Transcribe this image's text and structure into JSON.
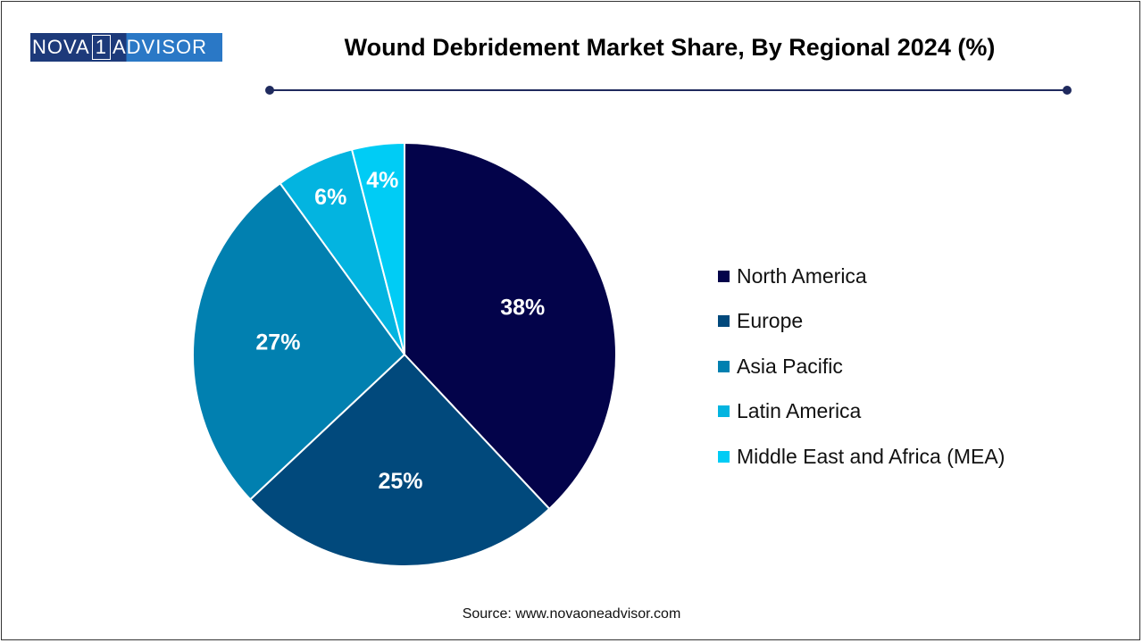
{
  "logo": {
    "text_left": "NOVA",
    "text_mid": "1",
    "text_right": "ADVISOR"
  },
  "chart_data": {
    "type": "pie",
    "title": "Wound Debridement Market Share, By Regional 2024 (%)",
    "categories": [
      "North America",
      "Europe",
      "Asia Pacific",
      "Latin America",
      "Middle East and Africa (MEA)"
    ],
    "values": [
      38,
      25,
      27,
      6,
      4
    ],
    "labels": [
      "38%",
      "25%",
      "27%",
      "6%",
      "4%"
    ],
    "colors": [
      "#03034a",
      "#01497c",
      "#0180b0",
      "#03b4e0",
      "#00ccf5"
    ],
    "start_angle": "top, clockwise",
    "legend_position": "right"
  },
  "source": "Source: www.novaoneadvisor.com"
}
